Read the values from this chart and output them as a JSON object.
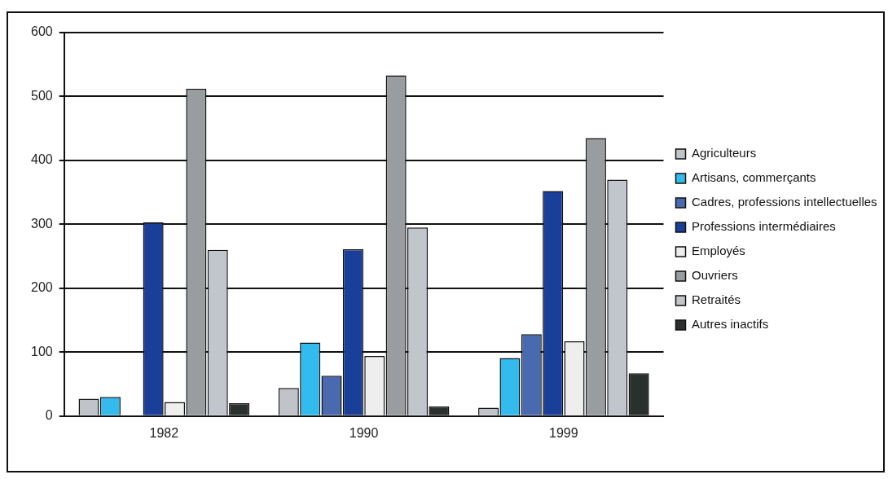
{
  "chart_data": {
    "type": "bar",
    "categories": [
      "1982",
      "1990",
      "1999"
    ],
    "series": [
      {
        "name": "Agriculteurs",
        "color": "#c0c4c8",
        "values": [
          27,
          44,
          13
        ]
      },
      {
        "name": "Artisans, commerçants",
        "color": "#33bbee",
        "values": [
          30,
          115,
          91
        ]
      },
      {
        "name": "Cadres, professions intellectuelles",
        "color": "#4a6aaf",
        "values": [
          0,
          63,
          128
        ]
      },
      {
        "name": "Professions intermédiaires",
        "color": "#1a3f99",
        "values": [
          303,
          261,
          352
        ]
      },
      {
        "name": "Employés",
        "color": "#eeeeee",
        "values": [
          22,
          94,
          117
        ]
      },
      {
        "name": "Ouvriers",
        "color": "#9a9da0",
        "values": [
          512,
          533,
          435
        ]
      },
      {
        "name": "Retraités",
        "color": "#c0c6cc",
        "values": [
          260,
          295,
          370
        ]
      },
      {
        "name": "Autres inactifs",
        "color": "#2a302e",
        "values": [
          20,
          15,
          67
        ]
      }
    ],
    "ylim": [
      0,
      600
    ],
    "yticks": [
      0,
      100,
      200,
      300,
      400,
      500,
      600
    ],
    "grid": "y",
    "legend": "right"
  }
}
